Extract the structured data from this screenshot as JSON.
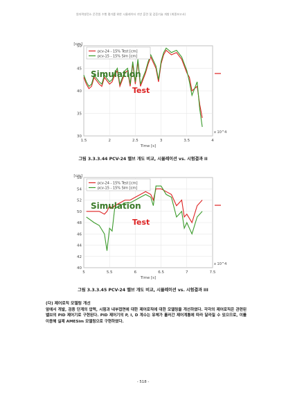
{
  "header_text": "원자력발전소 운전원 수행 평가를 위한 시뮬레이터 기반 훈련 및 검증기술 개발 (최종보고서)",
  "figures": [
    {
      "caption": "그림 3.3.3.44 PCV-24 밸브 개도 비교, 시뮬레이션 vs. 시험결과 II",
      "annotation_simulation": "Simulation",
      "annotation_test": "Test"
    },
    {
      "caption": "그림 3.3.3.45 PCV-24 밸브 개도 비교, 시뮬레이션 vs. 시험결과 III",
      "annotation_simulation": "Simulation",
      "annotation_test": "Test"
    }
  ],
  "section": {
    "title": "(다) 제어로직 모델링 개선",
    "paragraph": "앞에서 개발, 검증 단계의 압력, 시험과 내부접면에 대한 제어로직에 대한 모델링을 개선하였다. 각각의 제어로직은 관련된 밸브의 PID 제어기로 구현된다. PID 제어기의 P, I, D 계수는 유체가 흘러간 제어계통에 따라 달라질 수 있으므로, 이를 이용해 실제 AMESim 모델링으로 구현하였다."
  },
  "page_number": "- 518 -",
  "chart_data": [
    {
      "type": "line",
      "title": "",
      "xlabel": "Time [s]",
      "ylabel": "[cm]",
      "x_multiplier_label": "x 10^4",
      "xlim": [
        1.5,
        4.0
      ],
      "ylim": [
        30,
        50
      ],
      "xticks": [
        1.5,
        2,
        2.5,
        3,
        3.5,
        4
      ],
      "yticks": [
        30,
        35,
        40,
        45,
        50
      ],
      "legend": "top-left",
      "colors": {
        "test": "#dd2222",
        "simulation": "#3a9a2a"
      },
      "series": [
        {
          "name": "pcv-24 - 15% Test [cm]",
          "x": [
            1.5,
            1.55,
            1.6,
            1.65,
            1.7,
            1.8,
            1.85,
            1.9,
            2.0,
            2.05,
            2.1,
            2.15,
            2.2,
            2.3,
            2.35,
            2.4,
            2.45,
            2.5,
            2.55,
            2.6,
            2.7,
            2.75,
            2.8,
            2.9,
            2.95,
            3.0,
            3.05,
            3.1,
            3.15,
            3.2,
            3.3,
            3.4,
            3.5,
            3.55,
            3.6,
            3.7,
            3.75,
            3.8
          ],
          "values": [
            43,
            41.5,
            40.5,
            41,
            43,
            41.5,
            41,
            43,
            41.5,
            42,
            43.5,
            44.5,
            41,
            44,
            44.5,
            41,
            46,
            41.5,
            46.5,
            41,
            44,
            46,
            47.5,
            45,
            42,
            46,
            48,
            49,
            48.5,
            48,
            48.5,
            47,
            44,
            43,
            40,
            41,
            37,
            34
          ]
        },
        {
          "name": "pcv-15 - 15% Sim [cm]",
          "x": [
            1.5,
            1.55,
            1.6,
            1.65,
            1.7,
            1.8,
            1.85,
            1.9,
            2.0,
            2.05,
            2.1,
            2.15,
            2.2,
            2.3,
            2.35,
            2.4,
            2.45,
            2.5,
            2.55,
            2.6,
            2.7,
            2.75,
            2.8,
            2.9,
            2.95,
            3.0,
            3.05,
            3.1,
            3.15,
            3.2,
            3.3,
            3.4,
            3.5,
            3.55,
            3.6,
            3.7,
            3.75,
            3.8
          ],
          "values": [
            43.5,
            42,
            41,
            41.5,
            43.5,
            42,
            41.5,
            43.5,
            42,
            42.5,
            44,
            45,
            41.5,
            44.5,
            45,
            41.5,
            46.5,
            42,
            47,
            41.5,
            44.5,
            46.5,
            48,
            45.5,
            42.5,
            46.5,
            48.5,
            49.5,
            49,
            48.5,
            49,
            47.5,
            44.5,
            42,
            39,
            42,
            36,
            32
          ]
        }
      ]
    },
    {
      "type": "line",
      "title": "",
      "xlabel": "Time [s]",
      "ylabel": "[cm]",
      "x_multiplier_label": "x 10^4",
      "xlim": [
        5,
        7.5
      ],
      "ylim": [
        40,
        56
      ],
      "xticks": [
        5,
        5.5,
        6,
        6.5,
        7,
        7.5
      ],
      "yticks": [
        40,
        42,
        44,
        46,
        48,
        50,
        52,
        54,
        56
      ],
      "legend": "top-left",
      "colors": {
        "test": "#dd2222",
        "simulation": "#3a9a2a"
      },
      "series": [
        {
          "name": "pcv-24 - 15% Test [cm]",
          "x": [
            5.05,
            5.2,
            5.3,
            5.4,
            5.45,
            5.5,
            5.55,
            5.6,
            5.7,
            5.8,
            5.9,
            6.0,
            6.1,
            6.2,
            6.3,
            6.35,
            6.4,
            6.5,
            6.6,
            6.7,
            6.8,
            6.9,
            6.95,
            7.0,
            7.1,
            7.2,
            7.3
          ],
          "values": [
            50,
            50,
            50,
            49.5,
            50,
            51,
            50.5,
            51,
            51.5,
            52,
            52,
            52.5,
            53,
            53.5,
            53,
            52,
            54,
            54,
            53.5,
            53,
            51,
            52,
            49,
            49.5,
            48,
            51,
            52
          ]
        },
        {
          "name": "pcv-15 - 15% Sim [cm]",
          "x": [
            5.05,
            5.2,
            5.3,
            5.4,
            5.45,
            5.5,
            5.55,
            5.6,
            5.7,
            5.8,
            5.9,
            6.0,
            6.1,
            6.2,
            6.3,
            6.35,
            6.4,
            6.5,
            6.6,
            6.7,
            6.8,
            6.9,
            6.95,
            7.0,
            7.1,
            7.2,
            7.3
          ],
          "values": [
            49,
            48,
            47.5,
            46,
            43,
            47,
            46.5,
            50.5,
            51,
            51.5,
            51.5,
            52,
            52.5,
            53,
            52.5,
            51,
            54.5,
            54.5,
            53,
            52.5,
            49,
            50,
            47,
            48,
            46,
            49,
            50
          ]
        }
      ]
    }
  ]
}
